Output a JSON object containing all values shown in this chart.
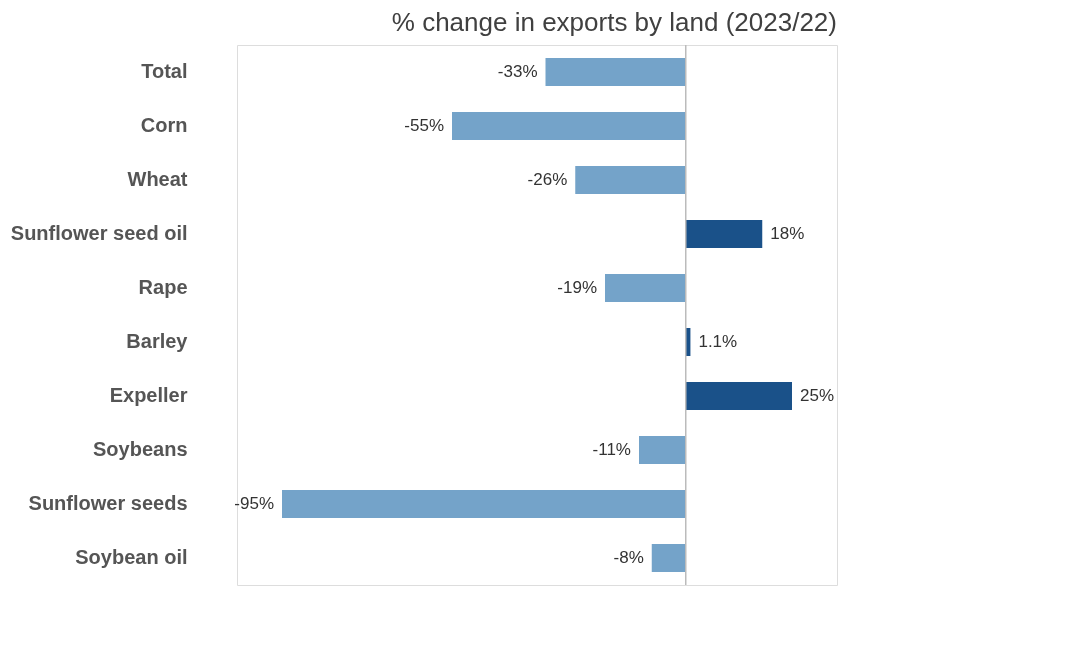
{
  "chart_data": {
    "type": "bar",
    "orientation": "horizontal",
    "title": "% change in exports by land (2023/22)",
    "categories": [
      "Total",
      "Corn",
      "Wheat",
      "Sunflower seed oil",
      "Rape",
      "Barley",
      "Expeller",
      "Soybeans",
      "Sunflower seeds",
      "Soybean oil"
    ],
    "values": [
      -33,
      -55,
      -26,
      18,
      -19,
      1.1,
      25,
      -11,
      -95,
      -8
    ],
    "colors": [
      "#74a3c9",
      "#74a3c9",
      "#74a3c9",
      "#1a5189",
      "#74a3c9",
      "#1a5189",
      "#1a5189",
      "#74a3c9",
      "#74a3c9",
      "#74a3c9"
    ],
    "value_labels": [
      "-33%",
      "-55%",
      "-26%",
      "18%",
      "-19%",
      "1.1%",
      "25%",
      "-11%",
      "-95%",
      "-8%"
    ],
    "grid": false
  }
}
